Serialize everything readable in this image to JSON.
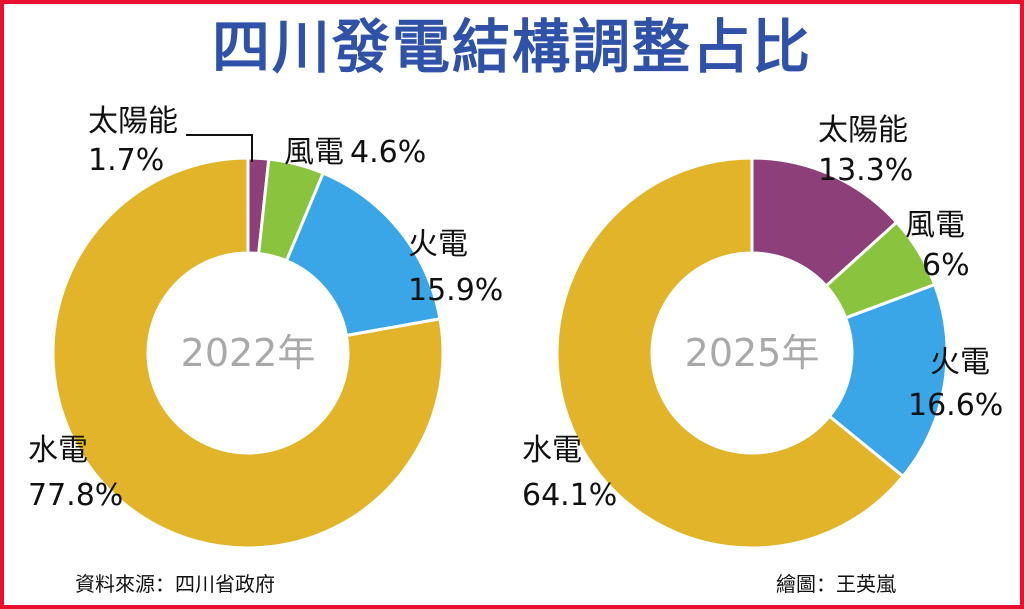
{
  "title": "四川發電結構調整占比",
  "footer": {
    "source": "資料來源：四川省政府",
    "credit": "繪圖：王英嵐"
  },
  "colors": {
    "solar": "#8c3f78",
    "wind": "#8ac43f",
    "thermal": "#3aa6e8",
    "hydro": "#e1b42a",
    "title": "#2f52a8",
    "border": "#e8102e",
    "year_label": "#a9a9a9"
  },
  "chart_data": [
    {
      "type": "pie",
      "center_label": "2022年",
      "slices": [
        {
          "name": "太陽能",
          "value_label": "1.7%",
          "value": 1.7,
          "color_key": "solar"
        },
        {
          "name": "風電",
          "value_label": "4.6%",
          "value": 4.6,
          "color_key": "wind"
        },
        {
          "name": "火電",
          "value_label": "15.9%",
          "value": 15.9,
          "color_key": "thermal"
        },
        {
          "name": "水電",
          "value_label": "77.8%",
          "value": 77.8,
          "color_key": "hydro"
        }
      ]
    },
    {
      "type": "pie",
      "center_label": "2025年",
      "slices": [
        {
          "name": "太陽能",
          "value_label": "13.3%",
          "value": 13.3,
          "color_key": "solar"
        },
        {
          "name": "風電",
          "value_label": "6%",
          "value": 6,
          "color_key": "wind"
        },
        {
          "name": "火電",
          "value_label": "16.6%",
          "value": 16.6,
          "color_key": "thermal"
        },
        {
          "name": "水電",
          "value_label": "64.1%",
          "value": 64.1,
          "color_key": "hydro"
        }
      ]
    }
  ]
}
